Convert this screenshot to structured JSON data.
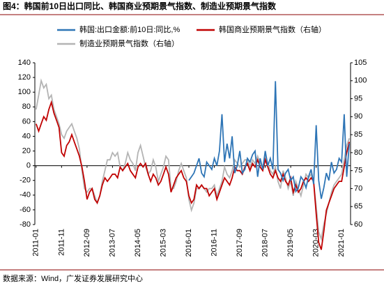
{
  "chart_data": {
    "type": "line",
    "title": "图4：韩国前10日出口同比、韩国商业预期景气指数、制造业预期景气指数",
    "source": "数据来源：Wind，广发证券发展研究中心",
    "categories": [
      "2011-01",
      null,
      null,
      null,
      null,
      null,
      null,
      null,
      null,
      null,
      "2011-11",
      null,
      null,
      null,
      null,
      null,
      null,
      null,
      null,
      null,
      "2012-09",
      null,
      null,
      null,
      null,
      null,
      null,
      null,
      null,
      null,
      "2013-07",
      null,
      null,
      null,
      null,
      null,
      null,
      null,
      null,
      null,
      "2014-05",
      null,
      null,
      null,
      null,
      null,
      null,
      null,
      null,
      null,
      "2015-03",
      null,
      null,
      null,
      null,
      null,
      null,
      null,
      null,
      null,
      "2016-01",
      null,
      null,
      null,
      null,
      null,
      null,
      null,
      null,
      null,
      "2016-11",
      null,
      null,
      null,
      null,
      null,
      null,
      null,
      null,
      null,
      "2017-09",
      null,
      null,
      null,
      null,
      null,
      null,
      null,
      null,
      null,
      "2018-07",
      null,
      null,
      null,
      null,
      null,
      null,
      null,
      null,
      null,
      "2019-05",
      null,
      null,
      null,
      null,
      null,
      null,
      null,
      null,
      null,
      "2020-03",
      null,
      null,
      null,
      null,
      null,
      null,
      null,
      null,
      null,
      "2021-01",
      null,
      null,
      null
    ],
    "series": [
      {
        "name": "韩国:出口金额:前10日:同比,%",
        "color": "#2e75b6",
        "axis": "y",
        "values": [
          null,
          null,
          null,
          null,
          null,
          null,
          null,
          null,
          null,
          null,
          null,
          null,
          null,
          null,
          null,
          null,
          null,
          null,
          null,
          null,
          null,
          null,
          null,
          null,
          null,
          null,
          null,
          null,
          null,
          null,
          null,
          null,
          null,
          null,
          null,
          null,
          null,
          null,
          null,
          null,
          null,
          null,
          null,
          null,
          null,
          null,
          null,
          null,
          null,
          null,
          null,
          null,
          null,
          null,
          null,
          null,
          null,
          null,
          null,
          null,
          -20,
          -15,
          -10,
          0,
          10,
          -10,
          -15,
          5,
          0,
          -5,
          10,
          0,
          20,
          70,
          5,
          30,
          10,
          40,
          -10,
          0,
          20,
          -10,
          -5,
          10,
          5,
          15,
          20,
          -15,
          10,
          -5,
          20,
          0,
          10,
          -5,
          115,
          -5,
          -10,
          -20,
          -10,
          -5,
          -20,
          -15,
          -35,
          -30,
          -15,
          -20,
          -30,
          -15,
          -5,
          -25,
          55,
          -20,
          -45,
          -30,
          -10,
          -20,
          5,
          -10,
          -5,
          10,
          5,
          70,
          -15,
          30
        ]
      },
      {
        "name": "韩国商业预期景气指数（右轴）",
        "color": "#c00000",
        "axis": "y2",
        "values": [
          88,
          86,
          88,
          90,
          89,
          92,
          94,
          91,
          89,
          87,
          80,
          79,
          82,
          83,
          85,
          83,
          81,
          79,
          76,
          72,
          67,
          69,
          70,
          67,
          66,
          68,
          71,
          73,
          72,
          73,
          74,
          74,
          73,
          76,
          75,
          76,
          77,
          75,
          74,
          73,
          76,
          77,
          76,
          77,
          74,
          72,
          74,
          73,
          71,
          72,
          74,
          76,
          74,
          69,
          71,
          73,
          74,
          75,
          73,
          72,
          68,
          66,
          67,
          71,
          70,
          71,
          70,
          70,
          68,
          69,
          70,
          67,
          69,
          71,
          73,
          72,
          71,
          73,
          76,
          75,
          75,
          74,
          76,
          77,
          75,
          77,
          76,
          78,
          76,
          75,
          78,
          76,
          74,
          73,
          75,
          73,
          72,
          74,
          72,
          71,
          73,
          69,
          71,
          69,
          70,
          72,
          73,
          72,
          73,
          72,
          63,
          55,
          53,
          58,
          64,
          66,
          68,
          70,
          71,
          72,
          72,
          76,
          80,
          83
        ]
      },
      {
        "name": "制造业预期景气指数（右轴）",
        "color": "#b4b4b4",
        "axis": "y2",
        "values": [
          92,
          96,
          100,
          98,
          99,
          95,
          96,
          92,
          90,
          88,
          85,
          84,
          86,
          87,
          88,
          86,
          84,
          81,
          75,
          70,
          69,
          70,
          70,
          68,
          66,
          68,
          72,
          75,
          78,
          78,
          80,
          79,
          80,
          76,
          75,
          77,
          80,
          78,
          77,
          75,
          80,
          82,
          79,
          76,
          74,
          75,
          78,
          76,
          72,
          74,
          76,
          79,
          78,
          70,
          70,
          72,
          75,
          77,
          75,
          73,
          67,
          64,
          66,
          70,
          70,
          71,
          70,
          69,
          70,
          70,
          71,
          68,
          70,
          72,
          76,
          74,
          73,
          75,
          78,
          77,
          76,
          77,
          78,
          78,
          76,
          78,
          77,
          79,
          77,
          76,
          79,
          77,
          75,
          74,
          76,
          72,
          70,
          75,
          73,
          70,
          72,
          68,
          72,
          70,
          68,
          71,
          74,
          73,
          74,
          72,
          65,
          58,
          56,
          60,
          63,
          66,
          69,
          71,
          72,
          73,
          74,
          78,
          82,
          84
        ]
      }
    ],
    "ylim": [
      -80,
      140
    ],
    "yticks": [
      -80,
      -60,
      -40,
      -20,
      0,
      20,
      40,
      60,
      80,
      100,
      120,
      140
    ],
    "y2lim": [
      60,
      105
    ],
    "y2ticks": [
      60,
      65,
      70,
      75,
      80,
      85,
      90,
      95,
      100,
      105
    ]
  }
}
